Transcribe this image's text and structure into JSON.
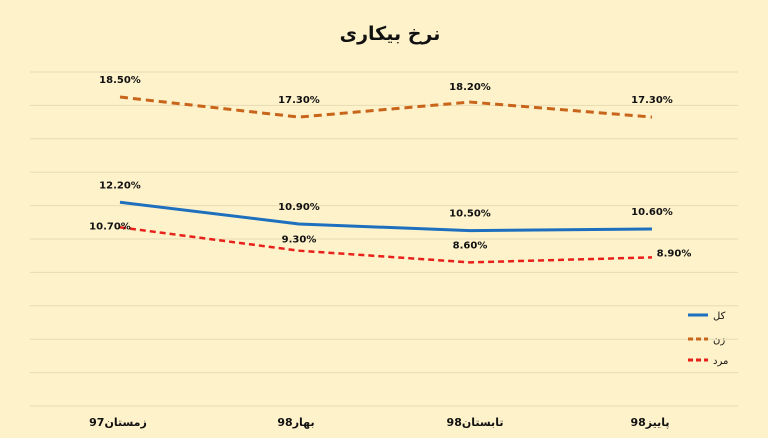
{
  "chart_data": {
    "type": "line",
    "title": "نرخ بیکاری",
    "categories": [
      "زمستان97",
      "بهار98",
      "تابستان98",
      "پاییز98"
    ],
    "ylim": [
      0,
      20
    ],
    "grid": true,
    "legend_position": "right",
    "series": [
      {
        "name": "کل",
        "values": [
          12.2,
          10.9,
          10.5,
          10.6
        ],
        "labels": [
          "12.20%",
          "10.90%",
          "10.50%",
          "10.60%"
        ],
        "color": "#1f6fbf",
        "dash": "solid"
      },
      {
        "name": "زن",
        "values": [
          18.5,
          17.3,
          18.2,
          17.3
        ],
        "labels": [
          "18.50%",
          "17.30%",
          "18.20%",
          "17.30%"
        ],
        "color": "#c8651b",
        "dash": "dashed"
      },
      {
        "name": "مرد",
        "values": [
          10.7,
          9.3,
          8.6,
          8.9
        ],
        "labels": [
          "10.70%",
          "9.30%",
          "8.60%",
          "8.90%"
        ],
        "color": "#e8201a",
        "dash": "dashed"
      }
    ]
  }
}
